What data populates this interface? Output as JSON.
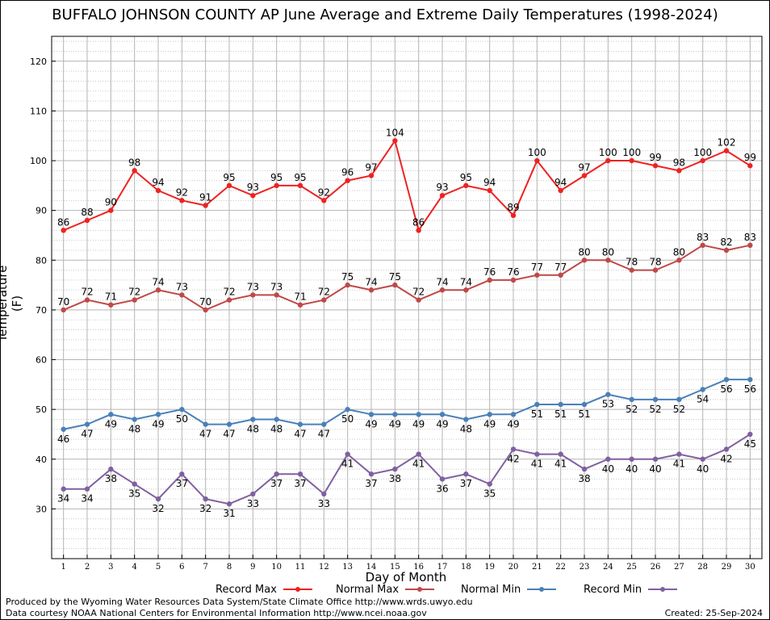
{
  "title": "BUFFALO JOHNSON COUNTY AP June Average and Extreme Daily Temperatures (1998-2024)",
  "footer": {
    "line1": "Produced by the Wyoming Water Resources Data System/State Climate Office http://www.wrds.uwyo.edu",
    "line2": "Data courtesy NOAA National Centers for Environmental Information http://www.ncei.noaa.gov",
    "created": "Created:  25-Sep-2024"
  },
  "chart_data": {
    "type": "line",
    "title": "BUFFALO JOHNSON COUNTY AP June Average and Extreme Daily Temperatures (1998-2024)",
    "xlabel": "Day of Month",
    "ylabel": "Temperature (F)",
    "x": [
      1,
      2,
      3,
      4,
      5,
      6,
      7,
      8,
      9,
      10,
      11,
      12,
      13,
      14,
      15,
      16,
      17,
      18,
      19,
      20,
      21,
      22,
      23,
      24,
      25,
      26,
      27,
      28,
      29,
      30
    ],
    "xlim": [
      0.5,
      30.5
    ],
    "ylim": [
      20,
      125
    ],
    "yticks": [
      30,
      40,
      50,
      60,
      70,
      80,
      90,
      100,
      110,
      120
    ],
    "grid": true,
    "legend": "bottom",
    "series": [
      {
        "name": "Record Max",
        "color": "#ee2222",
        "label_pos": "above",
        "values": [
          86,
          88,
          90,
          98,
          94,
          92,
          91,
          95,
          93,
          95,
          95,
          92,
          96,
          97,
          104,
          86,
          93,
          95,
          94,
          89,
          100,
          94,
          97,
          100,
          100,
          99,
          98,
          100,
          102,
          99
        ]
      },
      {
        "name": "Normal Max",
        "color": "#c04848",
        "label_pos": "above",
        "values": [
          70,
          72,
          71,
          72,
          74,
          73,
          70,
          72,
          73,
          73,
          71,
          72,
          75,
          74,
          75,
          72,
          74,
          74,
          76,
          76,
          77,
          77,
          80,
          80,
          78,
          78,
          80,
          83,
          82,
          83
        ]
      },
      {
        "name": "Normal Min",
        "color": "#4a80b8",
        "label_pos": "below",
        "values": [
          46,
          47,
          49,
          48,
          49,
          50,
          47,
          47,
          48,
          48,
          47,
          47,
          50,
          49,
          49,
          49,
          49,
          48,
          49,
          49,
          51,
          51,
          51,
          53,
          52,
          52,
          52,
          54,
          56,
          56
        ]
      },
      {
        "name": "Record Min",
        "color": "#8060a0",
        "label_pos": "below",
        "values": [
          34,
          34,
          38,
          35,
          32,
          37,
          32,
          31,
          33,
          37,
          37,
          33,
          41,
          37,
          38,
          41,
          36,
          37,
          35,
          42,
          41,
          41,
          38,
          40,
          40,
          40,
          41,
          40,
          42,
          45
        ]
      }
    ]
  }
}
